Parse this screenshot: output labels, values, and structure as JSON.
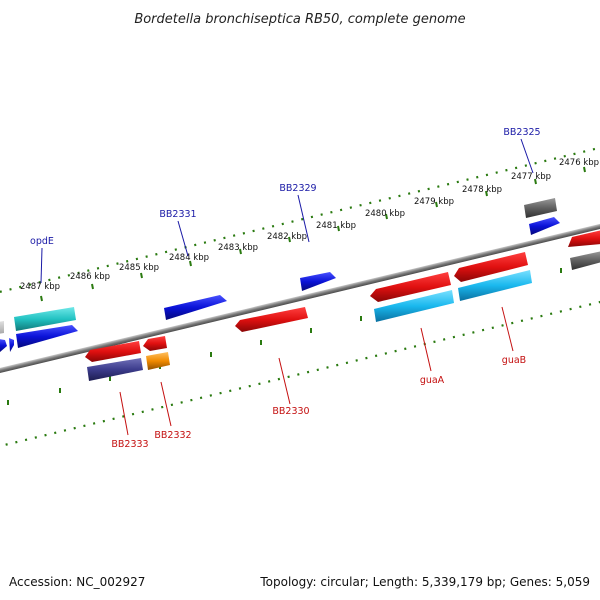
{
  "title": "Bordetella bronchiseptica RB50, complete genome",
  "footer": {
    "accession": "Accession: NC_002927",
    "summary": "Topology: circular; Length: 5,339,179 bp; Genes: 5,059"
  },
  "ticks": [
    "2487 kbp",
    "2486 kbp",
    "2485 kbp",
    "2484 kbp",
    "2483 kbp",
    "2482 kbp",
    "2481 kbp",
    "2480 kbp",
    "2479 kbp",
    "2478 kbp",
    "2477 kbp",
    "2476 kbp"
  ],
  "gene_labels": {
    "opdE": "opdE",
    "BB2331": "BB2331",
    "BB2329": "BB2329",
    "BB2325": "BB2325",
    "BB2333": "BB2333",
    "BB2332": "BB2332",
    "BB2330": "BB2330",
    "guaA": "guaA",
    "guaB": "guaB"
  },
  "colors": {
    "forward_blue": "#0a12d8",
    "reverse_red": "#e01010",
    "cyan": "#1ab8ee",
    "teal": "#22c2c2",
    "gray": "#606060",
    "orange": "#f08a00",
    "navy": "#3c3c8c",
    "backbone": "#7a7a7a",
    "tick_green": "#2a7a10"
  }
}
